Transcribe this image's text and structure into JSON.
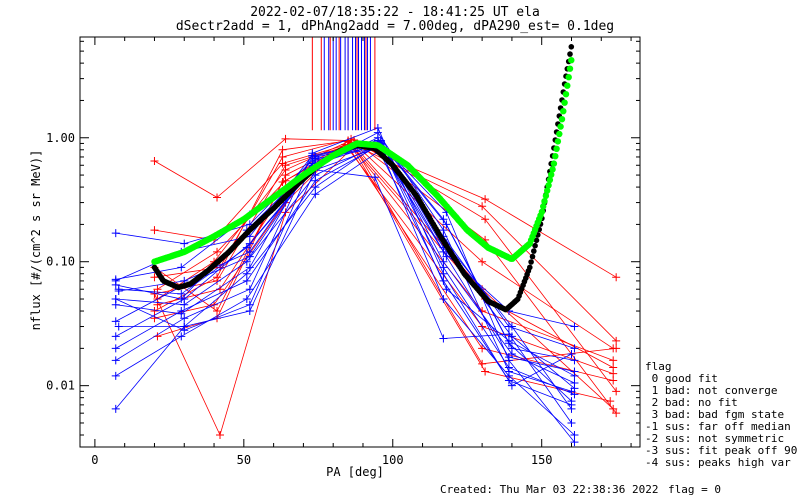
{
  "chart_data": {
    "type": "scatter",
    "title": "2022-02-07/18:35:22 - 18:41:25 UT ela",
    "subtitle": "dSectr2add = 1, dPhAng2add = 7.00deg, dPA290_est=   0.1deg",
    "xlabel": "PA [deg]",
    "ylabel": "nflux [#/(cm^2 s sr MeV)]",
    "xlim": [
      -5,
      183
    ],
    "ylim": [
      0.0032,
      6.5
    ],
    "yscale": "log",
    "grid": false,
    "x_ticks": [
      {
        "value": 0,
        "label": "0"
      },
      {
        "value": 50,
        "label": "50"
      },
      {
        "value": 100,
        "label": "100"
      },
      {
        "value": 150,
        "label": "150"
      }
    ],
    "y_ticks": [
      {
        "value": 0.01,
        "label": "0.01"
      },
      {
        "value": 0.1,
        "label": "0.10"
      },
      {
        "value": 1.0,
        "label": "1.00"
      }
    ],
    "legend": {
      "placement": "right",
      "title": "flag",
      "entries": [
        " 0 good fit",
        " 1 bad: not converge",
        " 2 bad: no fit",
        " 3 bad: bad fgm state",
        "-1 sus: far off median",
        "-2 sus: not symmetric",
        "-3 sus: fit peak off 90",
        "-4 sus: peaks high var"
      ]
    },
    "footer": {
      "created": "Created: Thu Mar 03 22:38:36 2022",
      "flag": "flag = 0"
    },
    "colors": {
      "red": "#ff0000",
      "blue": "#0000ff",
      "green": "#00ff00",
      "black": "#000000"
    },
    "vertical_lines": {
      "red_x": [
        73,
        76,
        79,
        82,
        85,
        88,
        91,
        94
      ],
      "blue_x": [
        77,
        78.5,
        80,
        81,
        82.5,
        84,
        85,
        86.5,
        87.5,
        88.5,
        89.5,
        90.5,
        91.5,
        92.5
      ]
    },
    "series": [
      {
        "color": "red",
        "x": [
          20,
          41,
          64,
          85,
          131,
          175
        ],
        "y": [
          0.65,
          0.33,
          0.98,
          0.95,
          0.32,
          0.075
        ]
      },
      {
        "color": "red",
        "x": [
          20,
          40,
          63,
          86,
          130,
          175
        ],
        "y": [
          0.18,
          0.15,
          0.62,
          0.9,
          0.28,
          0.023
        ]
      },
      {
        "color": "red",
        "x": [
          20,
          42,
          64,
          87,
          130,
          175
        ],
        "y": [
          0.055,
          0.004,
          0.25,
          0.85,
          0.015,
          0.02
        ]
      },
      {
        "color": "red",
        "x": [
          20,
          41,
          63,
          87,
          130,
          174
        ],
        "y": [
          0.09,
          0.04,
          0.44,
          0.9,
          0.1,
          0.02
        ]
      },
      {
        "color": "red",
        "x": [
          20,
          41,
          64,
          86,
          131,
          174
        ],
        "y": [
          0.055,
          0.07,
          0.6,
          0.88,
          0.05,
          0.014
        ]
      },
      {
        "color": "red",
        "x": [
          21,
          42,
          63,
          85,
          130,
          174
        ],
        "y": [
          0.045,
          0.06,
          0.35,
          0.85,
          0.02,
          0.011
        ]
      },
      {
        "color": "red",
        "x": [
          20,
          40,
          64,
          85,
          131,
          173
        ],
        "y": [
          0.035,
          0.045,
          0.3,
          0.95,
          0.013,
          0.0075
        ]
      },
      {
        "color": "red",
        "x": [
          21,
          41,
          64,
          86,
          130,
          174
        ],
        "y": [
          0.025,
          0.035,
          0.5,
          0.92,
          0.06,
          0.0065
        ]
      },
      {
        "color": "red",
        "x": [
          20,
          42,
          63,
          86,
          131,
          175
        ],
        "y": [
          0.075,
          0.09,
          0.7,
          0.98,
          0.15,
          0.006
        ]
      },
      {
        "color": "red",
        "x": [
          21,
          41,
          64,
          84,
          130,
          174
        ],
        "y": [
          0.06,
          0.12,
          0.45,
          0.88,
          0.03,
          0.0125
        ]
      },
      {
        "color": "red",
        "x": [
          20,
          41,
          63,
          87,
          131,
          175
        ],
        "y": [
          0.04,
          0.075,
          0.8,
          0.96,
          0.22,
          0.009
        ]
      },
      {
        "color": "red",
        "x": [
          21,
          40,
          64,
          85,
          130,
          174
        ],
        "y": [
          0.05,
          0.1,
          0.55,
          0.93,
          0.04,
          0.016
        ]
      },
      {
        "color": "blue",
        "x": [
          7,
          30,
          52,
          74,
          95,
          117,
          139,
          161
        ],
        "y": [
          0.17,
          0.14,
          0.2,
          0.7,
          0.88,
          0.12,
          0.04,
          0.03
        ]
      },
      {
        "color": "blue",
        "x": [
          7,
          29,
          52,
          74,
          96,
          117,
          139,
          161
        ],
        "y": [
          0.072,
          0.09,
          0.24,
          0.55,
          0.85,
          0.09,
          0.014,
          0.0085
        ]
      },
      {
        "color": "blue",
        "x": [
          7,
          29,
          51,
          73,
          96,
          118,
          140,
          161
        ],
        "y": [
          0.065,
          0.05,
          0.18,
          0.6,
          0.9,
          0.2,
          0.02,
          0.016
        ]
      },
      {
        "color": "blue",
        "x": [
          8,
          30,
          52,
          74,
          95,
          117,
          139,
          160
        ],
        "y": [
          0.058,
          0.07,
          0.12,
          0.68,
          0.82,
          0.07,
          0.011,
          0.007
        ]
      },
      {
        "color": "blue",
        "x": [
          7,
          30,
          51,
          74,
          96,
          117,
          140,
          160
        ],
        "y": [
          0.05,
          0.045,
          0.1,
          0.5,
          0.9,
          0.15,
          0.03,
          0.0065
        ]
      },
      {
        "color": "blue",
        "x": [
          7,
          29,
          52,
          73,
          95,
          118,
          139,
          161
        ],
        "y": [
          0.045,
          0.038,
          0.09,
          0.7,
          0.95,
          0.25,
          0.016,
          0.0035
        ]
      },
      {
        "color": "blue",
        "x": [
          8,
          30,
          51,
          74,
          96,
          117,
          140,
          161
        ],
        "y": [
          0.03,
          0.03,
          0.08,
          0.4,
          0.92,
          0.1,
          0.018,
          0.0105
        ]
      },
      {
        "color": "blue",
        "x": [
          7,
          30,
          52,
          74,
          95,
          117,
          139,
          160
        ],
        "y": [
          0.025,
          0.05,
          0.14,
          0.6,
          1.1,
          0.18,
          0.013,
          0.009
        ]
      },
      {
        "color": "blue",
        "x": [
          7,
          29,
          51,
          74,
          96,
          118,
          139,
          161
        ],
        "y": [
          0.02,
          0.04,
          0.07,
          0.45,
          0.88,
          0.06,
          0.023,
          0.012
        ]
      },
      {
        "color": "blue",
        "x": [
          7,
          30,
          52,
          73,
          95,
          117,
          140,
          160
        ],
        "y": [
          0.016,
          0.035,
          0.06,
          0.75,
          1.2,
          0.08,
          0.01,
          0.018
        ]
      },
      {
        "color": "blue",
        "x": [
          7,
          29,
          51,
          74,
          96,
          117,
          139,
          161
        ],
        "y": [
          0.012,
          0.025,
          0.05,
          0.35,
          0.8,
          0.05,
          0.012,
          0.004
        ]
      },
      {
        "color": "blue",
        "x": [
          7,
          30,
          52,
          74,
          94,
          117,
          139,
          160
        ],
        "y": [
          0.0065,
          0.03,
          0.04,
          0.55,
          0.48,
          0.024,
          0.026,
          0.005
        ]
      },
      {
        "color": "blue",
        "x": [
          7,
          30,
          52,
          73,
          96,
          117,
          140,
          161
        ],
        "y": [
          0.05,
          0.028,
          0.045,
          0.62,
          0.95,
          0.13,
          0.025,
          0.0095
        ]
      },
      {
        "color": "blue",
        "x": [
          8,
          29,
          51,
          74,
          95,
          118,
          139,
          161
        ],
        "y": [
          0.06,
          0.055,
          0.13,
          0.58,
          1.0,
          0.11,
          0.017,
          0.013
        ]
      },
      {
        "color": "blue",
        "x": [
          7,
          30,
          52,
          74,
          95,
          117,
          139,
          161
        ],
        "y": [
          0.033,
          0.065,
          0.11,
          0.66,
          0.87,
          0.16,
          0.03,
          0.02
        ]
      },
      {
        "color": "blue",
        "x": [
          7,
          29,
          52,
          73,
          96,
          117,
          139,
          160
        ],
        "y": [
          0.07,
          0.12,
          0.16,
          0.72,
          0.93,
          0.22,
          0.022,
          0.0075
        ]
      }
    ],
    "fit_curves": [
      {
        "color": "green",
        "x": [
          20,
          30,
          40,
          50,
          60,
          70,
          80,
          88,
          95,
          105,
          115,
          125,
          132,
          140,
          146,
          150,
          154,
          157,
          160
        ],
        "y": [
          0.1,
          0.12,
          0.16,
          0.22,
          0.33,
          0.5,
          0.72,
          0.9,
          0.87,
          0.6,
          0.34,
          0.18,
          0.13,
          0.105,
          0.14,
          0.25,
          0.6,
          1.5,
          4.3
        ]
      },
      {
        "color": "black",
        "x": [
          20,
          23,
          28,
          32,
          38,
          45,
          52,
          60,
          68,
          75,
          82,
          88,
          94,
          100,
          108,
          116,
          124,
          132,
          138,
          142,
          146,
          150,
          154,
          158,
          160
        ],
        "y": [
          0.09,
          0.07,
          0.062,
          0.066,
          0.085,
          0.12,
          0.18,
          0.27,
          0.42,
          0.6,
          0.78,
          0.87,
          0.82,
          0.6,
          0.34,
          0.16,
          0.08,
          0.048,
          0.041,
          0.05,
          0.09,
          0.22,
          0.8,
          3.0,
          5.5
        ]
      }
    ]
  }
}
